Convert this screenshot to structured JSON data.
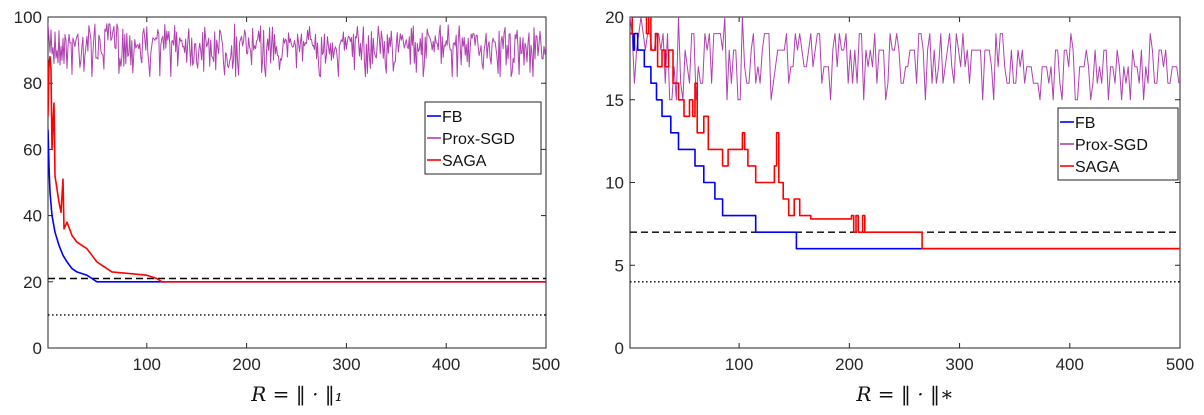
{
  "chart_data": [
    {
      "type": "line",
      "xlabel": "R = ‖ · ‖₁",
      "xlim": [
        1,
        500
      ],
      "ylim": [
        0,
        100
      ],
      "xticks": [
        100,
        200,
        300,
        400,
        500
      ],
      "yticks": [
        0,
        20,
        40,
        60,
        80,
        100
      ],
      "legend": "right-center",
      "hlines": [
        {
          "y": 21,
          "style": "dashed",
          "color": "#000000"
        },
        {
          "y": 10,
          "style": "dotted",
          "color": "#000000"
        }
      ],
      "series": [
        {
          "name": "FB",
          "color": "#0000ff",
          "points": [
            [
              1,
              66
            ],
            [
              2,
              55
            ],
            [
              3,
              47
            ],
            [
              5,
              40
            ],
            [
              8,
              35
            ],
            [
              12,
              31
            ],
            [
              16,
              28
            ],
            [
              20,
              26
            ],
            [
              25,
              24
            ],
            [
              30,
              23
            ],
            [
              40,
              22
            ],
            [
              45,
              21
            ],
            [
              50,
              20
            ],
            [
              500,
              20
            ]
          ]
        },
        {
          "name": "Prox-SGD",
          "color": "#b040b0",
          "noise": {
            "seed": 7,
            "step": 1,
            "lo": 82,
            "hi": 100,
            "center": 95,
            "drift": -2
          },
          "points": [
            [
              1,
              99
            ],
            [
              500,
              94
            ]
          ]
        },
        {
          "name": "SAGA",
          "color": "#ff0000",
          "points": [
            [
              1,
              70
            ],
            [
              2,
              86
            ],
            [
              3,
              88
            ],
            [
              4,
              84
            ],
            [
              5,
              60
            ],
            [
              6,
              68
            ],
            [
              7,
              74
            ],
            [
              8,
              52
            ],
            [
              10,
              48
            ],
            [
              12,
              44
            ],
            [
              14,
              41
            ],
            [
              16,
              51
            ],
            [
              17,
              36
            ],
            [
              20,
              38
            ],
            [
              25,
              34
            ],
            [
              30,
              32
            ],
            [
              40,
              30
            ],
            [
              45,
              28
            ],
            [
              50,
              26
            ],
            [
              55,
              25
            ],
            [
              60,
              24
            ],
            [
              65,
              23
            ],
            [
              100,
              22
            ],
            [
              110,
              21
            ],
            [
              115,
              20
            ],
            [
              500,
              20
            ]
          ]
        }
      ]
    },
    {
      "type": "line",
      "xlabel": "R = ‖ · ‖∗",
      "xlim": [
        1,
        500
      ],
      "ylim": [
        0,
        20
      ],
      "xticks": [
        100,
        200,
        300,
        400,
        500
      ],
      "yticks": [
        0,
        5,
        10,
        15,
        20
      ],
      "legend": "right-center",
      "hlines": [
        {
          "y": 7,
          "style": "dashed",
          "color": "#000000"
        },
        {
          "y": 4,
          "style": "dotted",
          "color": "#000000"
        }
      ],
      "series": [
        {
          "name": "FB",
          "color": "#0000ff",
          "points": [
            [
              1,
              19
            ],
            [
              4,
              18
            ],
            [
              5,
              19
            ],
            [
              8,
              18
            ],
            [
              14,
              17
            ],
            [
              20,
              16
            ],
            [
              25,
              15
            ],
            [
              30,
              14
            ],
            [
              38,
              13
            ],
            [
              45,
              12
            ],
            [
              60,
              11
            ],
            [
              68,
              10
            ],
            [
              78,
              9
            ],
            [
              85,
              8
            ],
            [
              100,
              8
            ],
            [
              115,
              7
            ],
            [
              150,
              7
            ],
            [
              152,
              6
            ],
            [
              500,
              6
            ]
          ]
        },
        {
          "name": "Prox-SGD",
          "color": "#b040b0",
          "noise": {
            "seed": 11,
            "step": 2,
            "lo": 15,
            "hi": 20,
            "center": 19.5,
            "drift": -3
          },
          "points": [
            [
              1,
              20
            ],
            [
              500,
              16
            ]
          ]
        },
        {
          "name": "SAGA",
          "color": "#ff0000",
          "points": [
            [
              1,
              19
            ],
            [
              3,
              20
            ],
            [
              14,
              20
            ],
            [
              16,
              19
            ],
            [
              18,
              20
            ],
            [
              20,
              18
            ],
            [
              24,
              19
            ],
            [
              26,
              17
            ],
            [
              30,
              18
            ],
            [
              33,
              17
            ],
            [
              36,
              18
            ],
            [
              40,
              16
            ],
            [
              45,
              15
            ],
            [
              50,
              14
            ],
            [
              55,
              15
            ],
            [
              58,
              14
            ],
            [
              60,
              16
            ],
            [
              62,
              13
            ],
            [
              68,
              14
            ],
            [
              72,
              12
            ],
            [
              80,
              12
            ],
            [
              85,
              11
            ],
            [
              90,
              12
            ],
            [
              100,
              12
            ],
            [
              103,
              13
            ],
            [
              105,
              12
            ],
            [
              108,
              11
            ],
            [
              115,
              10
            ],
            [
              130,
              10
            ],
            [
              132,
              11
            ],
            [
              134,
              13
            ],
            [
              136,
              10
            ],
            [
              140,
              9
            ],
            [
              145,
              8
            ],
            [
              150,
              9
            ],
            [
              155,
              8
            ],
            [
              160,
              8
            ],
            [
              165,
              7.8
            ],
            [
              200,
              7.8
            ],
            [
              202,
              8
            ],
            [
              204,
              7
            ],
            [
              206,
              8
            ],
            [
              208,
              7
            ],
            [
              212,
              8
            ],
            [
              214,
              7
            ],
            [
              265,
              7
            ],
            [
              266,
              6
            ],
            [
              500,
              6
            ]
          ]
        }
      ]
    }
  ]
}
